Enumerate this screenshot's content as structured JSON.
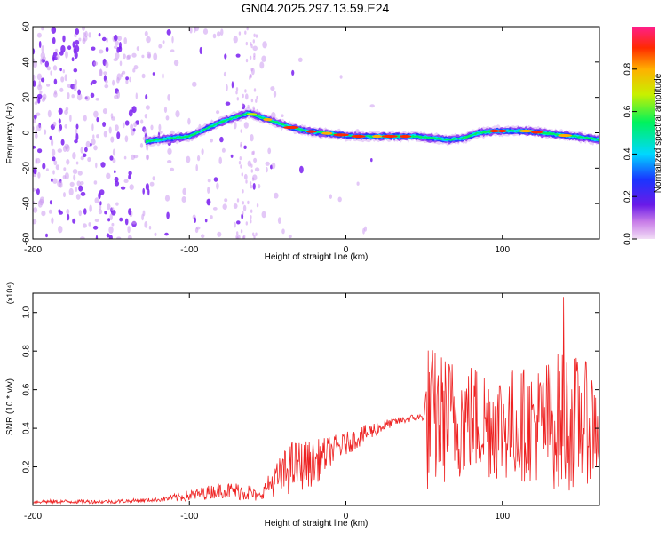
{
  "title": "GN04.2025.297.13.59.E24",
  "chart_data": [
    {
      "type": "heatmap",
      "name": "spectrogram",
      "xlabel": "Height of straight line (km)",
      "ylabel": "Frequency (Hz)",
      "xlim": [
        -200,
        162
      ],
      "ylim": [
        -60,
        60
      ],
      "xticks": [
        "-200",
        "-100",
        "0",
        "100"
      ],
      "yticks": [
        "60",
        "40",
        "20",
        "0",
        "-20",
        "-40",
        "-60"
      ],
      "ridge": {
        "x": [
          -128,
          -120,
          -110,
          -100,
          -90,
          -80,
          -70,
          -62,
          -55,
          -45,
          -35,
          -25,
          -15,
          -5,
          5,
          15,
          25,
          35,
          45,
          55,
          65,
          75,
          85,
          95,
          105,
          115,
          125,
          135,
          145,
          155,
          162
        ],
        "freq": [
          -5,
          -4,
          -3,
          -2,
          2,
          6,
          9,
          11,
          9,
          6,
          3,
          1,
          0,
          -1,
          -2,
          -2,
          -2,
          -2,
          -2,
          -3,
          -4,
          -3,
          0,
          1,
          1,
          1,
          0,
          -1,
          -2,
          -3,
          -4
        ]
      },
      "noise_region_x": [
        -200,
        -55
      ],
      "colorbar": {
        "label": "Normalized spectral amplitude",
        "ticks": [
          "0.0",
          "0.2",
          "0.4",
          "0.6",
          "0.8"
        ],
        "range": [
          0,
          1
        ]
      }
    },
    {
      "type": "line",
      "name": "snr",
      "xlabel": "Height of straight line (km)",
      "ylabel": "SNR (10 * v/v)",
      "multiplier": "(x10⁴)",
      "xlim": [
        -200,
        162
      ],
      "ylim": [
        0,
        1.1
      ],
      "xticks": [
        "-200",
        "-100",
        "0",
        "100"
      ],
      "yticks": [
        "0.2",
        "0.4",
        "0.6",
        "0.8",
        "1.0"
      ],
      "series": [
        {
          "name": "SNR",
          "color": "#ee2222",
          "x": [
            -200,
            -150,
            -120,
            -100,
            -80,
            -62,
            -56,
            -50,
            -40,
            -35,
            -20,
            -10,
            0,
            10,
            20,
            30,
            40,
            50,
            52,
            60,
            80,
            100,
            120,
            140,
            162
          ],
          "mean": [
            0.02,
            0.02,
            0.03,
            0.05,
            0.08,
            0.07,
            0.04,
            0.1,
            0.16,
            0.2,
            0.22,
            0.28,
            0.32,
            0.36,
            0.4,
            0.43,
            0.45,
            0.46,
            0.45,
            0.45,
            0.45,
            0.42,
            0.42,
            0.44,
            0.42
          ],
          "amp": [
            0.01,
            0.01,
            0.01,
            0.03,
            0.04,
            0.05,
            0.02,
            0.05,
            0.12,
            0.14,
            0.12,
            0.08,
            0.06,
            0.05,
            0.04,
            0.02,
            0.02,
            0.02,
            0.4,
            0.35,
            0.3,
            0.3,
            0.3,
            0.38,
            0.28
          ]
        }
      ],
      "peak": {
        "x": 139,
        "y": 1.08
      }
    }
  ]
}
